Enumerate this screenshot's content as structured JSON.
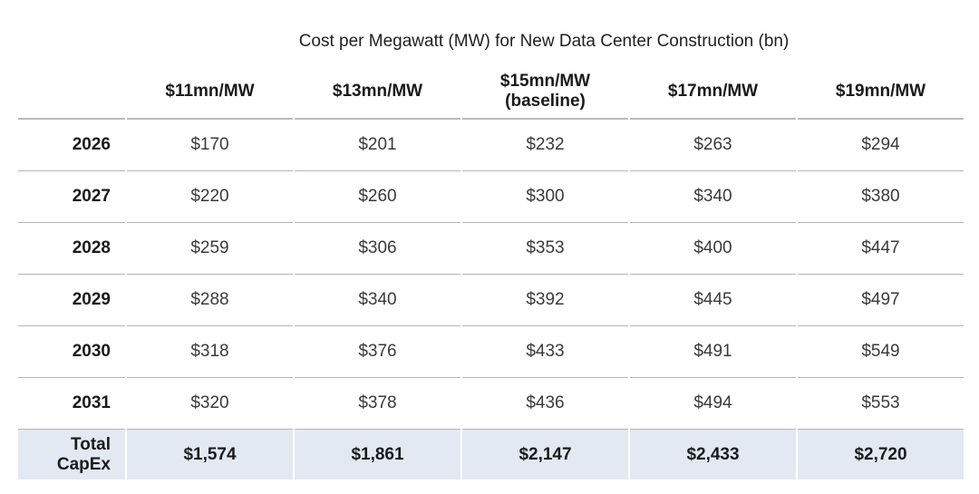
{
  "chart_data": {
    "type": "table",
    "title": "Cost per Megawatt (MW) for New Data Center Construction (bn)",
    "columns": [
      {
        "line1": "$11mn/MW",
        "line2": ""
      },
      {
        "line1": "$13mn/MW",
        "line2": ""
      },
      {
        "line1": "$15mn/MW",
        "line2": "(baseline)"
      },
      {
        "line1": "$17mn/MW",
        "line2": ""
      },
      {
        "line1": "$19mn/MW",
        "line2": ""
      }
    ],
    "rows": [
      {
        "label": "2026",
        "values": [
          "$170",
          "$201",
          "$232",
          "$263",
          "$294"
        ]
      },
      {
        "label": "2027",
        "values": [
          "$220",
          "$260",
          "$300",
          "$340",
          "$380"
        ]
      },
      {
        "label": "2028",
        "values": [
          "$259",
          "$306",
          "$353",
          "$400",
          "$447"
        ]
      },
      {
        "label": "2029",
        "values": [
          "$288",
          "$340",
          "$392",
          "$445",
          "$497"
        ]
      },
      {
        "label": "2030",
        "values": [
          "$318",
          "$376",
          "$433",
          "$491",
          "$549"
        ]
      },
      {
        "label": "2031",
        "values": [
          "$320",
          "$378",
          "$436",
          "$494",
          "$553"
        ]
      }
    ],
    "total": {
      "label_line1": "Total",
      "label_line2": "CapEx",
      "values": [
        "$1,574",
        "$1,861",
        "$2,147",
        "$2,433",
        "$2,720"
      ]
    },
    "colors": {
      "total_row_bg": "#e3e9f3",
      "rule": "#b5b5b5",
      "header_text": "#1a1a1a",
      "value_text": "#3a3a3a"
    }
  }
}
